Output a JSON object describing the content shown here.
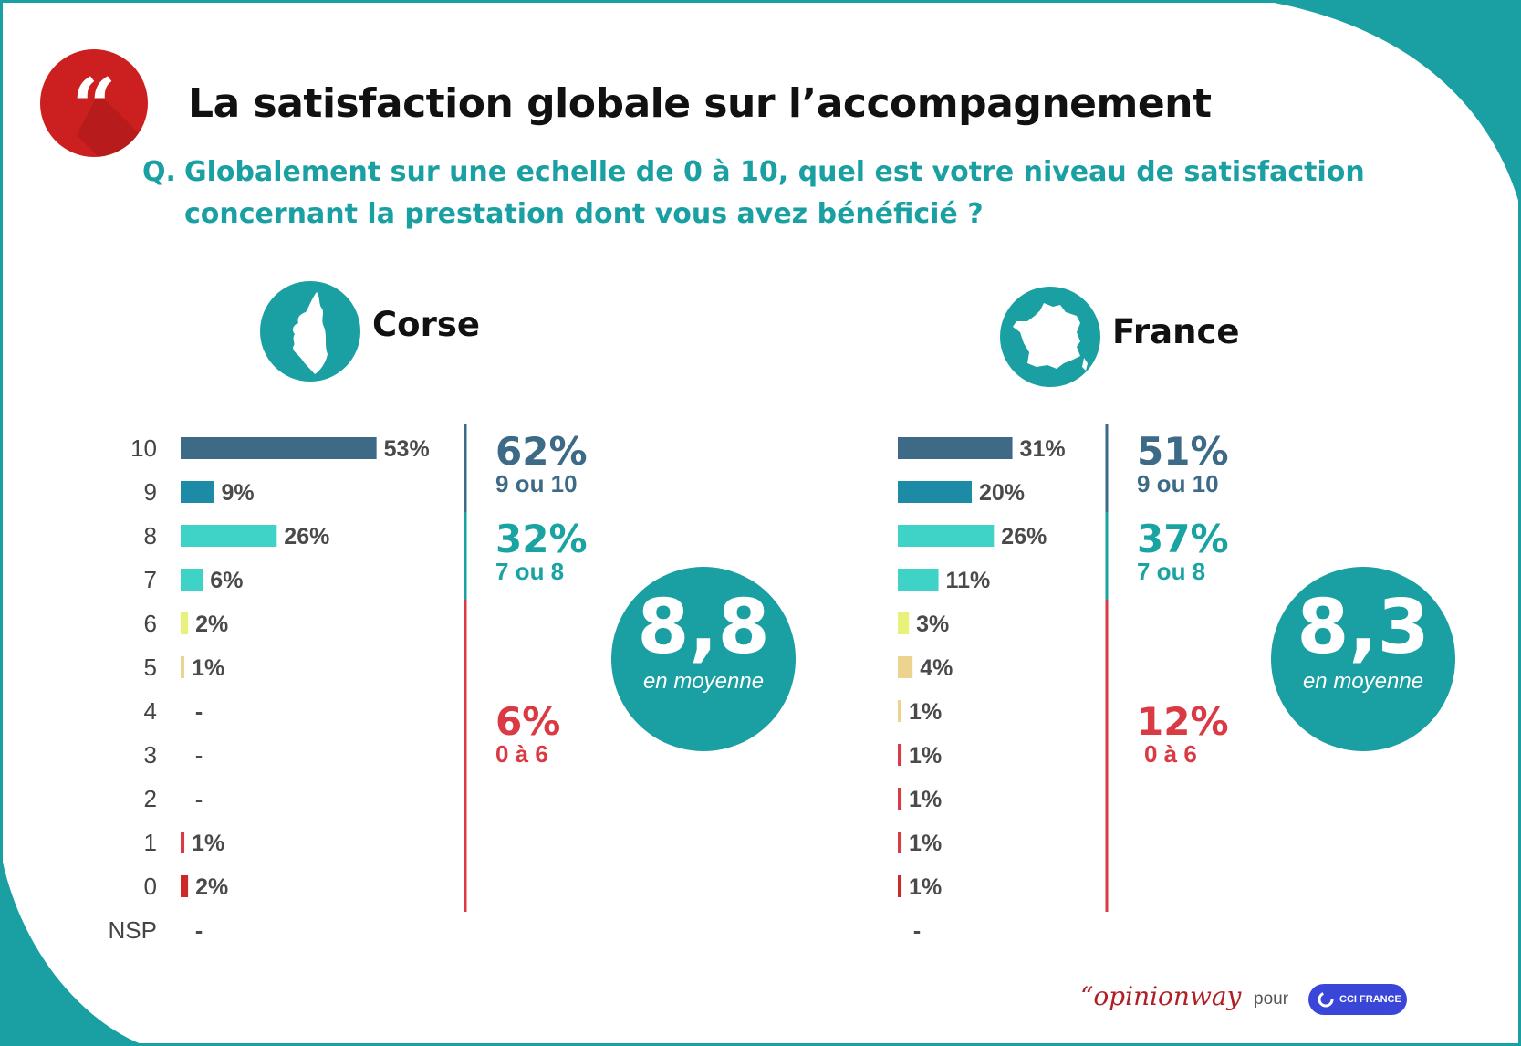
{
  "header": {
    "title": "La satisfaction globale sur l’accompagnement",
    "question_prefix": "Q.",
    "question": "Globalement sur une echelle de 0 à 10, quel est votre niveau de satisfaction concernant la prestation dont vous avez bénéficié ?"
  },
  "colors": {
    "teal": "#1a9fa3",
    "red_badge": "#cc1f1f",
    "score_10": "#3d6a87",
    "score_9": "#1e8ba6",
    "score_8": "#3ed3c6",
    "score_7": "#3ed3c6",
    "score_6": "#e8f27a",
    "score_5": "#ecd490",
    "score_4": "#ecd490",
    "score_3": "#d93a43",
    "score_2": "#d93a43",
    "score_1": "#d93a43",
    "score_0": "#cc2a2a",
    "group_top": "#3d6a87",
    "group_mid": "#1aa3a3",
    "group_low": "#d93a43"
  },
  "chart_data": [
    {
      "type": "bar",
      "region": "Corse",
      "categories": [
        "10",
        "9",
        "8",
        "7",
        "6",
        "5",
        "4",
        "3",
        "2",
        "1",
        "0",
        "NSP"
      ],
      "values": [
        53,
        9,
        26,
        6,
        2,
        1,
        null,
        null,
        null,
        1,
        2,
        null
      ],
      "labels": [
        "53%",
        "9%",
        "26%",
        "6%",
        "2%",
        "1%",
        "-",
        "-",
        "-",
        "1%",
        "2%",
        "-"
      ],
      "groups": [
        {
          "value": "62%",
          "label": "9 ou 10",
          "from": 0,
          "to": 1,
          "color_key": "group_top"
        },
        {
          "value": "32%",
          "label": "7 ou 8",
          "from": 2,
          "to": 3,
          "color_key": "group_mid"
        },
        {
          "value": "6%",
          "label": "0 à 6",
          "from": 4,
          "to": 11,
          "color_key": "group_low"
        }
      ],
      "average": {
        "value": "8,8",
        "label": "en moyenne"
      }
    },
    {
      "type": "bar",
      "region": "France",
      "categories": [
        "10",
        "9",
        "8",
        "7",
        "6",
        "5",
        "4",
        "3",
        "2",
        "1",
        "0",
        "NSP"
      ],
      "values": [
        31,
        20,
        26,
        11,
        3,
        4,
        1,
        1,
        1,
        1,
        1,
        null
      ],
      "labels": [
        "31%",
        "20%",
        "26%",
        "11%",
        "3%",
        "4%",
        "1%",
        "1%",
        "1%",
        "1%",
        "1%",
        "-"
      ],
      "groups": [
        {
          "value": "51%",
          "label": "9 ou 10",
          "from": 0,
          "to": 1,
          "color_key": "group_top"
        },
        {
          "value": "37%",
          "label": "7 ou 8",
          "from": 2,
          "to": 3,
          "color_key": "group_mid"
        },
        {
          "value": "12%",
          "label": "0 à 6",
          "from": 4,
          "to": 11,
          "color_key": "group_low"
        }
      ],
      "average": {
        "value": "8,3",
        "label": "en moyenne"
      }
    }
  ],
  "footer": {
    "brand": "opinionway",
    "pour": "pour",
    "partner": "CCI FRANCE"
  }
}
